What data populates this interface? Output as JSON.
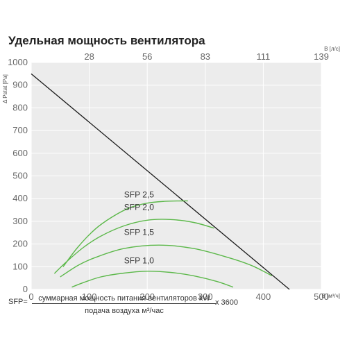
{
  "chart_data": {
    "type": "line",
    "title": "Удельная мощность вентилятора",
    "xlabel": "В [м³/ч]",
    "ylabel": "Δ Pstat [Pa]",
    "x2label": "В [л/с]",
    "xlim": [
      0,
      500
    ],
    "ylim": [
      0,
      1000
    ],
    "x_ticks": [
      0,
      100,
      200,
      300,
      400,
      500
    ],
    "y_ticks": [
      0,
      100,
      200,
      300,
      400,
      500,
      600,
      700,
      800,
      900,
      1000
    ],
    "x2_ticks": [
      {
        "at": 100,
        "label": "28"
      },
      {
        "at": 200,
        "label": "56"
      },
      {
        "at": 300,
        "label": "83"
      },
      {
        "at": 400,
        "label": "111"
      },
      {
        "at": 500,
        "label": "139"
      }
    ],
    "grid": true,
    "system_curve": {
      "color": "#1a1a1a",
      "points": [
        [
          0,
          950
        ],
        [
          445,
          0
        ]
      ]
    },
    "series": [
      {
        "name": "SFP 2,5",
        "label_at": [
          160,
          405
        ],
        "color": "#5cb84a",
        "points": [
          [
            55,
            100
          ],
          [
            80,
            185
          ],
          [
            110,
            265
          ],
          [
            140,
            320
          ],
          [
            170,
            360
          ],
          [
            200,
            380
          ],
          [
            230,
            388
          ],
          [
            260,
            390
          ],
          [
            270,
            390
          ]
        ]
      },
      {
        "name": "SFP 2,0",
        "label_at": [
          160,
          350
        ],
        "color": "#5cb84a",
        "points": [
          [
            40,
            70
          ],
          [
            60,
            120
          ],
          [
            90,
            185
          ],
          [
            120,
            235
          ],
          [
            160,
            280
          ],
          [
            200,
            305
          ],
          [
            240,
            308
          ],
          [
            280,
            295
          ],
          [
            315,
            270
          ]
        ]
      },
      {
        "name": "SFP 1,5",
        "label_at": [
          160,
          240
        ],
        "color": "#5cb84a",
        "points": [
          [
            50,
            55
          ],
          [
            80,
            105
          ],
          [
            110,
            140
          ],
          [
            160,
            180
          ],
          [
            220,
            195
          ],
          [
            280,
            180
          ],
          [
            340,
            140
          ],
          [
            380,
            105
          ],
          [
            415,
            60
          ]
        ]
      },
      {
        "name": "SFP 1,0",
        "label_at": [
          160,
          115
        ],
        "color": "#5cb84a",
        "points": [
          [
            70,
            10
          ],
          [
            90,
            30
          ],
          [
            120,
            55
          ],
          [
            160,
            72
          ],
          [
            200,
            80
          ],
          [
            240,
            75
          ],
          [
            280,
            60
          ],
          [
            320,
            35
          ],
          [
            348,
            10
          ]
        ]
      }
    ]
  },
  "formula": {
    "lhs": "SFP=",
    "numerator": "суммарная мощность питания вентиляторов kW",
    "multiplier": "x 3600",
    "denominator": "подача воздуха м³/час"
  }
}
